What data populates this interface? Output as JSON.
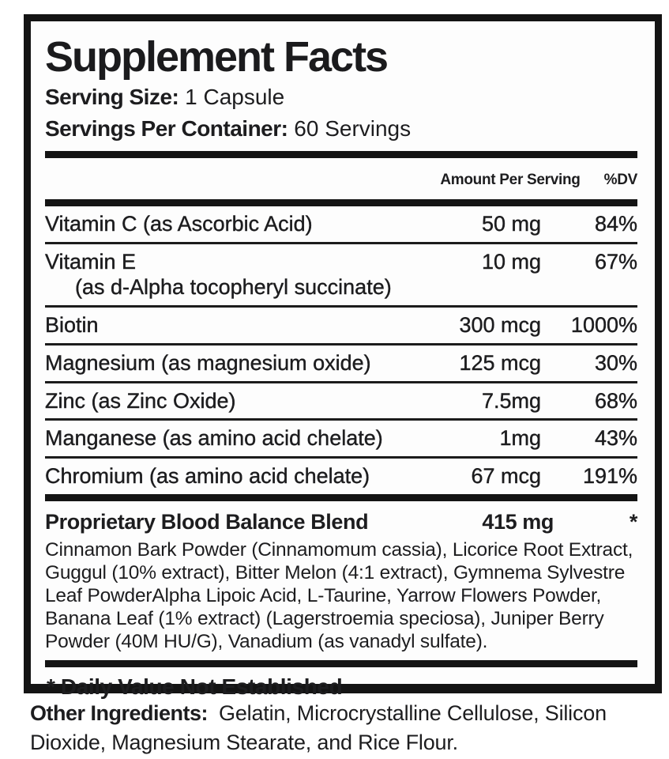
{
  "label": {
    "title": "Supplement Facts",
    "serving_size_label": "Serving Size:",
    "serving_size_value": "1 Capsule",
    "servings_per_container_label": "Servings Per Container:",
    "servings_per_container_value": "60 Servings",
    "columns": {
      "amount": "Amount Per Serving",
      "dv": "%DV"
    },
    "rows": [
      {
        "name": "Vitamin C (as Ascorbic Acid)",
        "amount": "50 mg",
        "dv": "84%"
      },
      {
        "name": "Vitamin E",
        "sub": "(as d-Alpha tocopheryl succinate)",
        "amount": "10 mg",
        "dv": "67%"
      },
      {
        "name": "Biotin",
        "amount": "300 mcg",
        "dv": "1000%"
      },
      {
        "name": "Magnesium (as magnesium oxide)",
        "amount": "125 mcg",
        "dv": "30%"
      },
      {
        "name": "Zinc (as Zinc Oxide)",
        "amount": "7.5mg",
        "dv": "68%"
      },
      {
        "name": "Manganese (as amino acid chelate)",
        "amount": "1mg",
        "dv": "43%"
      },
      {
        "name": "Chromium (as amino acid chelate)",
        "amount": "67 mcg",
        "dv": "191%"
      }
    ],
    "blend": {
      "name": "Proprietary Blood Balance Blend",
      "amount": "415 mg",
      "dv": "*",
      "ingredients": "Cinnamon Bark Powder (Cinnamomum cassia), Licorice Root Extract, Guggul (10% extract), Bitter Melon (4:1 extract), Gymnema Sylvestre Leaf PowderAlpha Lipoic Acid, L-Taurine, Yarrow Flowers Powder, Banana Leaf (1% extract) (Lagerstroemia speciosa), Juniper Berry Powder (40M HU/G), Vanadium (as vanadyl sulfate)."
    },
    "footnote": "* Daily Value Not Established",
    "other_ingredients_label": "Other Ingredients:",
    "other_ingredients_value": "Gelatin, Microcrystalline Cellulose, Silicon Dioxide, Magnesium Stearate, and Rice Flour.",
    "colors": {
      "text": "#1d1d1f",
      "rule": "#141414",
      "panel_background": "#fdfdfd",
      "page_background": "#ffffff"
    }
  }
}
